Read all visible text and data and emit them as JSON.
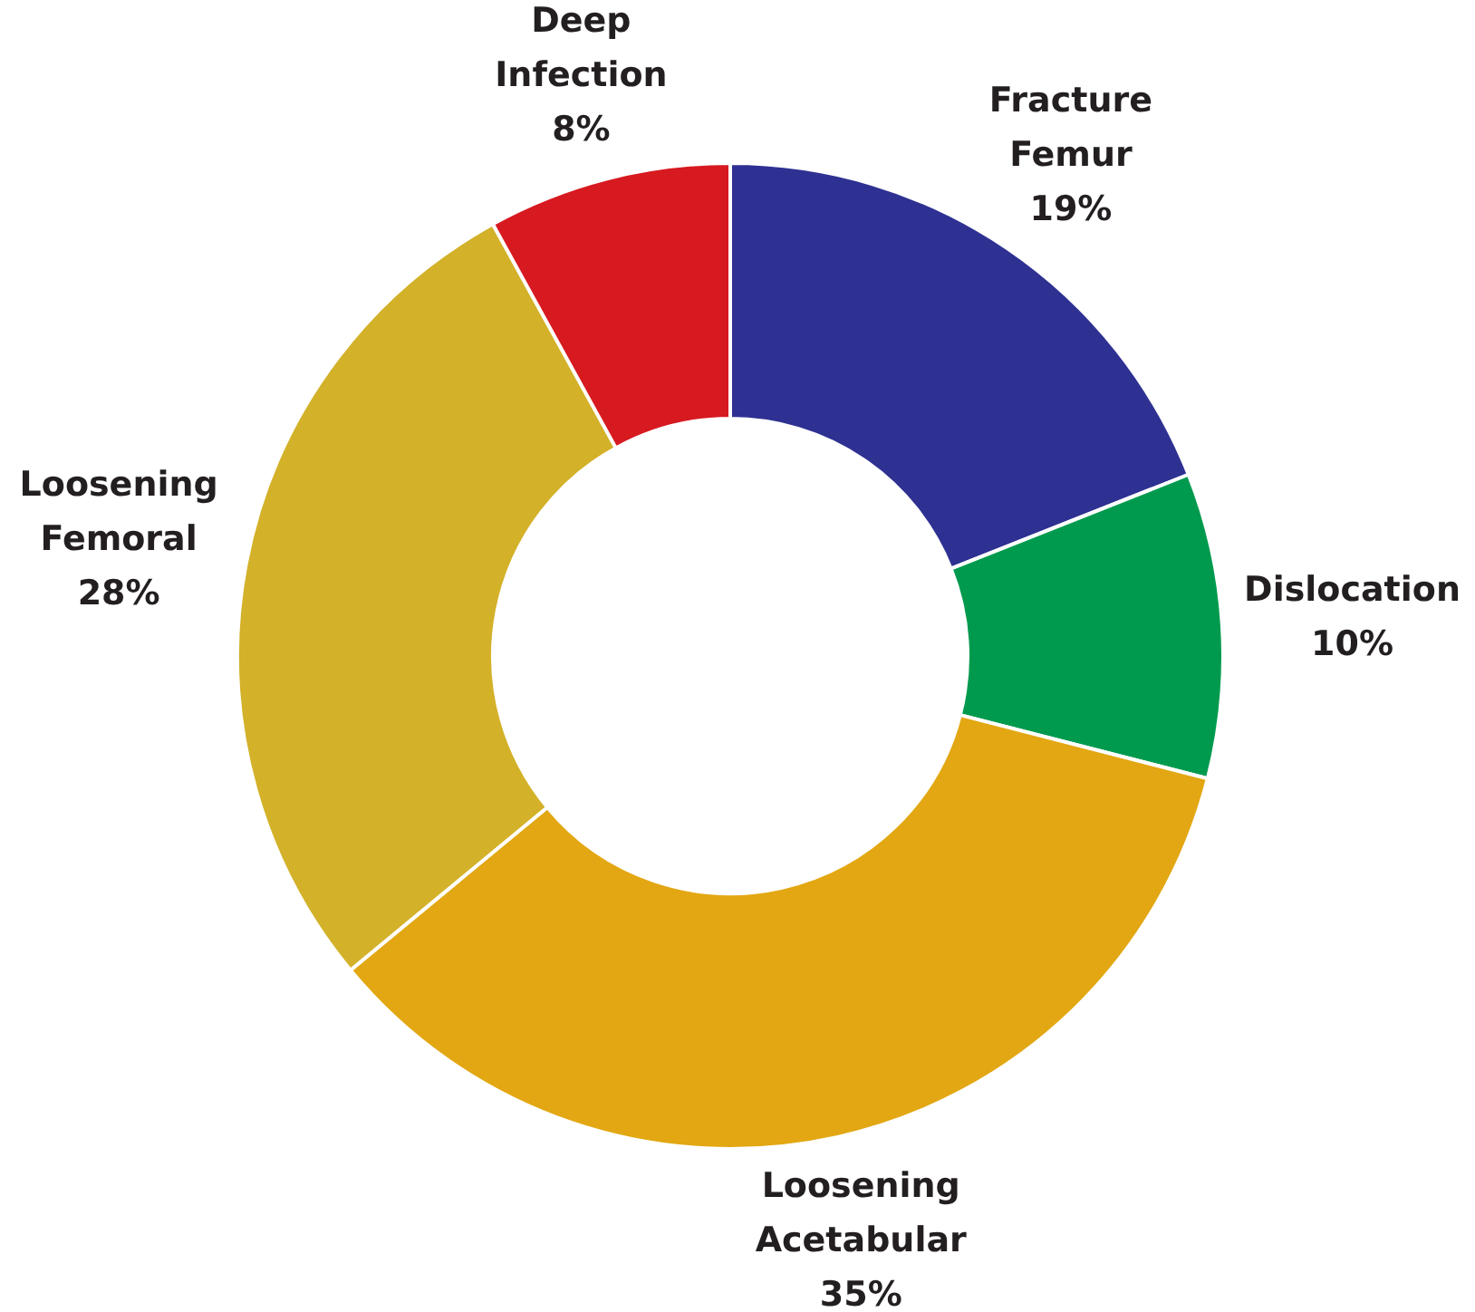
{
  "chart_data": {
    "type": "donut",
    "categories": [
      "Fracture Femur",
      "Dislocation",
      "Loosening Acetabular",
      "Loosening Femoral",
      "Deep Infection"
    ],
    "values": [
      19,
      10,
      35,
      28,
      8
    ],
    "colors": [
      "#2e3192",
      "#009a4e",
      "#e2a712",
      "#d3b129",
      "#d71920"
    ],
    "value_labels": [
      "19%",
      "10%",
      "35%",
      "28%",
      "8%"
    ],
    "legend": false
  }
}
